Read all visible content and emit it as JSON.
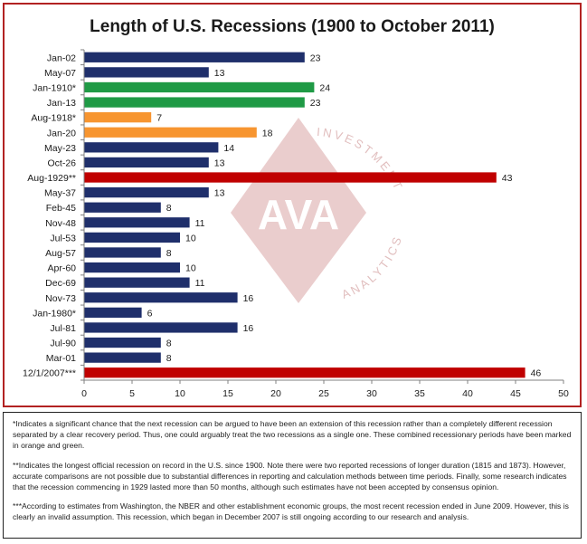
{
  "chart_data": {
    "type": "bar",
    "orientation": "horizontal",
    "title": "Length of U.S. Recessions (1900 to October 2011)",
    "xlabel": "",
    "ylabel": "",
    "xlim": [
      0,
      50
    ],
    "x_ticks": [
      0,
      5,
      10,
      15,
      20,
      25,
      30,
      35,
      40,
      45,
      50
    ],
    "grid": false,
    "legend": "none",
    "categories": [
      "Jan-02",
      "May-07",
      "Jan-1910*",
      "Jan-13",
      "Aug-1918*",
      "Jan-20",
      "May-23",
      "Oct-26",
      "Aug-1929**",
      "May-37",
      "Feb-45",
      "Nov-48",
      "Jul-53",
      "Aug-57",
      "Apr-60",
      "Dec-69",
      "Nov-73",
      "Jan-1980*",
      "Jul-81",
      "Jul-90",
      "Mar-01",
      "12/1/2007***"
    ],
    "values": [
      23,
      13,
      24,
      23,
      7,
      18,
      14,
      13,
      43,
      13,
      8,
      11,
      10,
      8,
      10,
      11,
      16,
      6,
      16,
      8,
      8,
      46
    ],
    "bar_colors": [
      "#1f2f6b",
      "#1f2f6b",
      "#1f9a45",
      "#1f9a45",
      "#f79530",
      "#f79530",
      "#1f2f6b",
      "#1f2f6b",
      "#c00000",
      "#1f2f6b",
      "#1f2f6b",
      "#1f2f6b",
      "#1f2f6b",
      "#1f2f6b",
      "#1f2f6b",
      "#1f2f6b",
      "#1f2f6b",
      "#1f2f6b",
      "#1f2f6b",
      "#1f2f6b",
      "#1f2f6b",
      "#c00000"
    ]
  },
  "watermark": {
    "logo_text": "AVA",
    "arc_top": "INVESTMENT",
    "arc_bottom": "ANALYTICS",
    "color": "#d9a5a5"
  },
  "notes": [
    "*Indicates a significant chance that the next recession can be argued to have been an extension of this recession rather than a completely different recession separated by a clear recovery period. Thus, one could arguably treat the two recessions as a single one. These combined recessionary periods have been marked in orange and green.",
    "**Indicates the longest official recession on record in the U.S. since 1900. Note there were two reported recessions of longer duration (1815 and 1873). However, accurate comparisons are not possible due to substantial differences in reporting and calculation methods between time periods. Finally, some research indicates that the recession commencing in 1929 lasted more than 50 months, although such estimates have not been accepted by consensus opinion.",
    "***According to estimates from Washington, the NBER and other establishment economic groups, the most recent recession ended in June 2009. However, this is clearly an invalid assumption. This recession, which began in December 2007 is still ongoing according to our research and analysis."
  ]
}
